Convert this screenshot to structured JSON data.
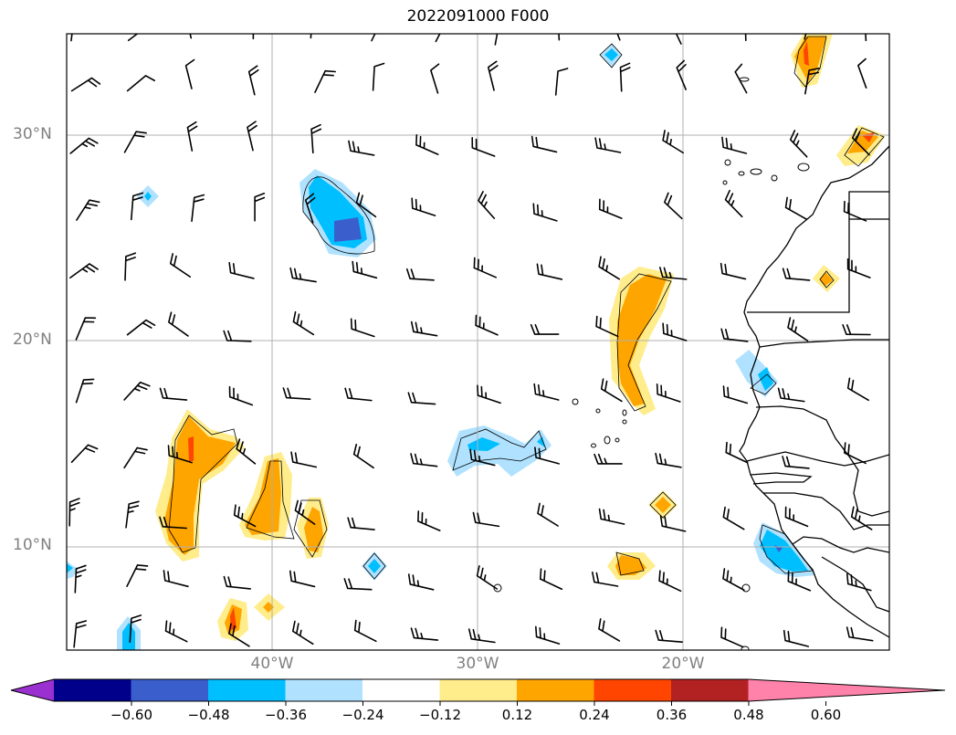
{
  "title": "2022091000 F000",
  "lat_labels": [
    "30°N",
    "20°N",
    "10°N"
  ],
  "lon_labels": [
    "40°W",
    "30°W",
    "20°W"
  ],
  "colorbar": {
    "ticks": [
      "−0.60",
      "−0.48",
      "−0.36",
      "−0.24",
      "−0.12",
      "0.12",
      "0.24",
      "0.36",
      "0.48",
      "0.60"
    ],
    "colors": [
      "#9b30d0",
      "#00008b",
      "#3a5fcd",
      "#00bfff",
      "#b0e2ff",
      "#ffffff",
      "#ffec8b",
      "#ffa500",
      "#ff4500",
      "#b22222",
      "#ff82ab"
    ],
    "extend": "both"
  },
  "map": {
    "lon_range": [
      "50°W",
      "10°W"
    ],
    "lat_range": [
      "5°N",
      "35°N"
    ],
    "grid": true,
    "overlay": "wind barbs",
    "fill_levels": [
      -0.6,
      -0.48,
      -0.36,
      -0.24,
      -0.12,
      0.12,
      0.24,
      0.36,
      0.48,
      0.6
    ]
  }
}
